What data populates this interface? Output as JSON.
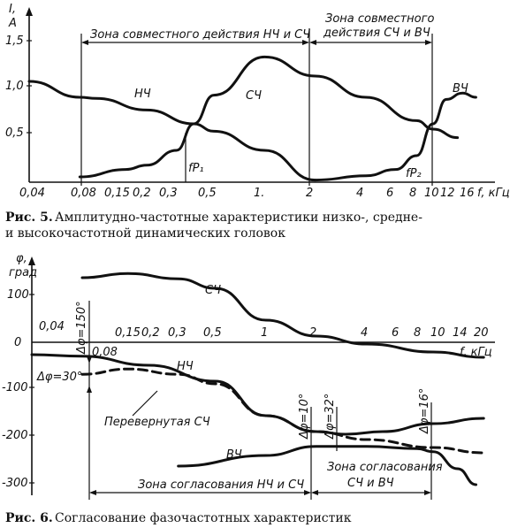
{
  "chart_data": [
    {
      "type": "line",
      "title": "",
      "caption_label": "Рис. 5.",
      "caption_text_1": "Амплитудно-частотные характеристики низко-, средне-",
      "caption_text_2": "и высокочастотной динамических головок",
      "xlabel": "f, кГц",
      "ylabel_1": "I,",
      "ylabel_2": "A",
      "xscale": "log",
      "xlim": [
        0.04,
        22
      ],
      "ylim": [
        0,
        1.6
      ],
      "y_ticks": [
        "1,5",
        "1,0",
        "0,5"
      ],
      "x_ticks": [
        "0,04",
        "0,08",
        "0,15",
        "0,2",
        "0,3",
        "0,5",
        "1.",
        "2",
        "4",
        "6",
        "8",
        "10",
        "12",
        "16"
      ],
      "series": [
        {
          "name": "НЧ",
          "x": [
            0.04,
            0.08,
            0.1,
            0.2,
            0.38,
            0.5,
            1.0,
            2.0
          ],
          "y": [
            0.95,
            0.8,
            0.79,
            0.68,
            0.55,
            0.48,
            0.3,
            0.02
          ]
        },
        {
          "name": "СЧ",
          "x": [
            0.08,
            0.15,
            0.2,
            0.3,
            0.38,
            0.5,
            1.0,
            2.0,
            4.0,
            8.0,
            10.0,
            14.0
          ],
          "y": [
            0.05,
            0.12,
            0.16,
            0.3,
            0.55,
            0.82,
            1.18,
            1.0,
            0.8,
            0.58,
            0.5,
            0.42
          ]
        },
        {
          "name": "ВЧ",
          "x": [
            2.0,
            4.0,
            6.0,
            8.0,
            10.0,
            12.0,
            15.0,
            18.0
          ],
          "y": [
            0.02,
            0.06,
            0.12,
            0.25,
            0.55,
            0.78,
            0.84,
            0.8
          ]
        }
      ],
      "annotations": {
        "zone1": "Зона совместного действия НЧ и СЧ",
        "zone2_line1": "Зона совместного",
        "zone2_line2": "действия СЧ и ВЧ",
        "fp1": "fР₁",
        "fp2": "fР₂"
      }
    },
    {
      "type": "line",
      "title": "",
      "caption_label": "Рис. 6.",
      "caption_text": "Согласование фазочастотных характеристик",
      "xlabel": "f, кГц",
      "ylabel_1": "φ,",
      "ylabel_2": "град",
      "xscale": "log",
      "xlim": [
        0.04,
        22
      ],
      "ylim": [
        -320,
        120
      ],
      "y_ticks": [
        "100",
        "0",
        "-100",
        "-200",
        "-300"
      ],
      "x_ticks": [
        "0,04",
        "0,08",
        "0,15",
        "0,2",
        "0,3",
        "0,5",
        "1",
        "2",
        "4",
        "6",
        "8",
        "10",
        "14",
        "20"
      ],
      "series": [
        {
          "name": "СЧ",
          "x": [
            0.08,
            0.15,
            0.3,
            0.5,
            1.0,
            2.0,
            4.0,
            10.0,
            20.0
          ],
          "y": [
            90,
            98,
            88,
            70,
            10,
            -20,
            -35,
            -50,
            -60
          ]
        },
        {
          "name": "НЧ",
          "x": [
            0.04,
            0.08,
            0.2,
            0.5,
            1.0,
            2.0,
            3.0,
            5.0,
            10.0,
            20.0
          ],
          "y": [
            -55,
            -58,
            -75,
            -105,
            -170,
            -200,
            -205,
            -200,
            -185,
            -175
          ]
        },
        {
          "name": "Перевернутая СЧ",
          "x": [
            0.08,
            0.15,
            0.3,
            0.5,
            1.0,
            2.0,
            4.0,
            10.0,
            20.0
          ],
          "y": [
            -92,
            -82,
            -92,
            -110,
            -170,
            -200,
            -215,
            -230,
            -240
          ]
        },
        {
          "name": "ВЧ",
          "x": [
            0.3,
            1.0,
            2.0,
            4.0,
            8.0,
            10.0,
            14.0,
            18.0
          ],
          "y": [
            -265,
            -245,
            -228,
            -228,
            -232,
            -238,
            -270,
            -300
          ]
        }
      ],
      "annotations": {
        "dphi1": "Δφ=150°",
        "dphi2": "Δφ=30°",
        "dphi3": "Δφ=10°",
        "dphi4": "Δφ=32°",
        "dphi5": "Δφ=16°",
        "zone1": "Зона согласования НЧ и СЧ",
        "zone2_line1": "Зона согласования",
        "zone2_line2": "СЧ и ВЧ"
      }
    }
  ]
}
